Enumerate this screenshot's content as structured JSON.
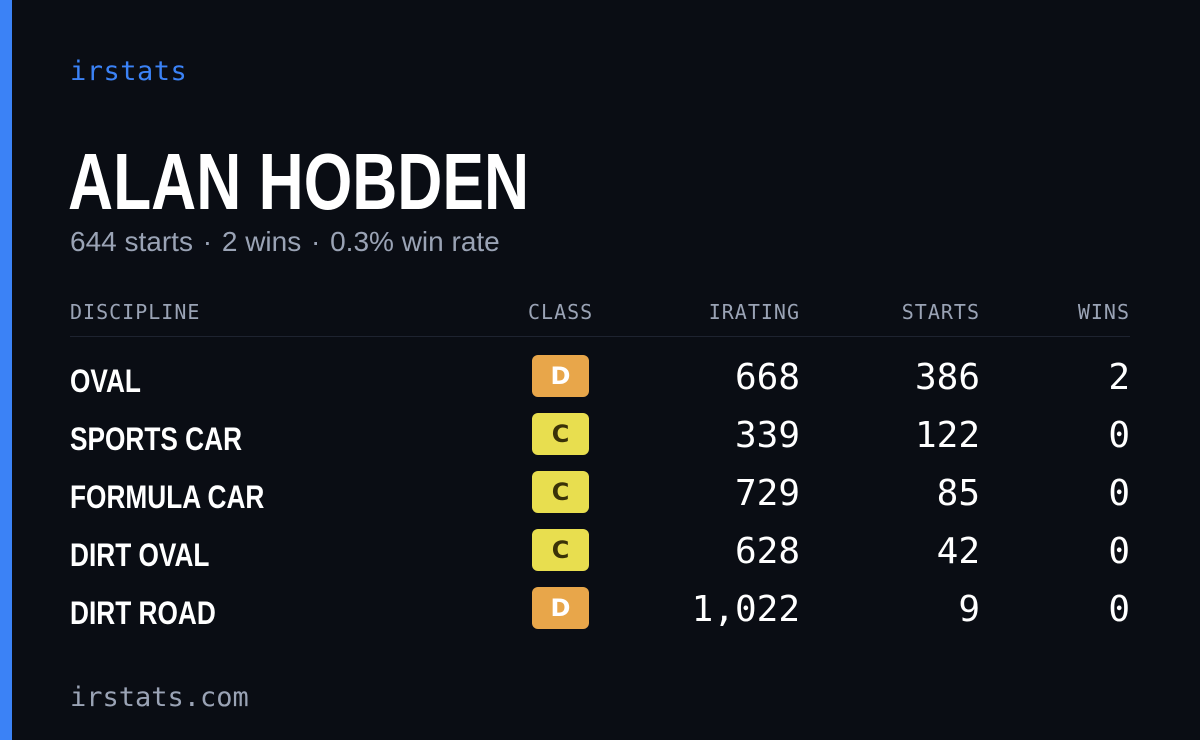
{
  "brand": "irstats",
  "driver": {
    "name": "ALAN HOBDEN"
  },
  "summary": {
    "starts": "644 starts",
    "wins": "2 wins",
    "win_rate": "0.3% win rate",
    "separator": "·"
  },
  "table": {
    "headers": {
      "discipline": "DISCIPLINE",
      "class": "CLASS",
      "irating": "IRATING",
      "starts": "STARTS",
      "wins": "WINS"
    },
    "rows": [
      {
        "discipline": "OVAL",
        "class": "D",
        "irating": "668",
        "starts": "386",
        "wins": "2"
      },
      {
        "discipline": "SPORTS CAR",
        "class": "C",
        "irating": "339",
        "starts": "122",
        "wins": "0"
      },
      {
        "discipline": "FORMULA CAR",
        "class": "C",
        "irating": "729",
        "starts": "85",
        "wins": "0"
      },
      {
        "discipline": "DIRT OVAL",
        "class": "C",
        "irating": "628",
        "starts": "42",
        "wins": "0"
      },
      {
        "discipline": "DIRT ROAD",
        "class": "D",
        "irating": "1,022",
        "starts": "9",
        "wins": "0"
      }
    ]
  },
  "footer": "irstats.com",
  "colors": {
    "background": "#0a0d14",
    "accent": "#3b82f6",
    "class_d": "#e8a64a",
    "class_c": "#e8de4f",
    "muted_text": "#9aa3b5"
  }
}
